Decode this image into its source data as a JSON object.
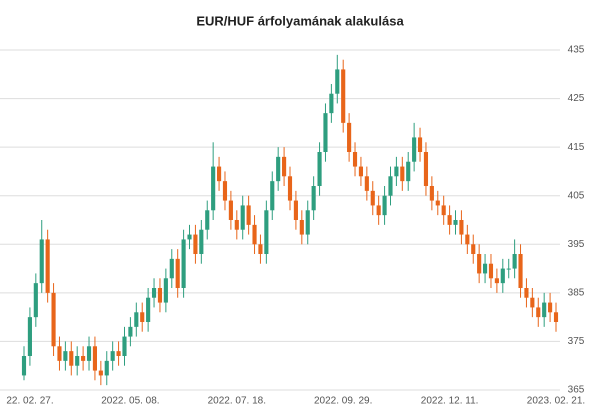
{
  "chart_data": {
    "type": "candlestick",
    "title": "EUR/HUF árfolyamának alakulása",
    "categories": [
      "22. 02. 27.",
      null,
      null,
      null,
      null,
      null,
      null,
      null,
      null,
      null,
      null,
      null,
      null,
      null,
      null,
      null,
      null,
      null,
      "2022. 05. 08.",
      null,
      null,
      null,
      null,
      null,
      null,
      null,
      null,
      null,
      null,
      null,
      null,
      null,
      null,
      null,
      null,
      null,
      "2022. 07. 18.",
      null,
      null,
      null,
      null,
      null,
      null,
      null,
      null,
      null,
      null,
      null,
      null,
      null,
      null,
      null,
      null,
      null,
      "2022. 09. 29.",
      null,
      null,
      null,
      null,
      null,
      null,
      null,
      null,
      null,
      null,
      null,
      null,
      null,
      null,
      null,
      null,
      null,
      "2022. 12. 11.",
      null,
      null,
      null,
      null,
      null,
      null,
      null,
      null,
      null,
      null,
      null,
      null,
      null,
      null,
      null,
      null,
      null,
      "2023. 02. 21."
    ],
    "open": [
      368,
      372,
      380,
      387,
      396,
      385,
      374,
      371,
      373,
      370,
      372,
      371,
      374,
      369,
      368,
      371,
      373,
      372,
      376,
      378,
      381,
      379,
      384,
      386,
      383,
      388,
      392,
      386,
      396,
      397,
      393,
      398,
      402,
      411,
      408,
      404,
      400,
      398,
      403,
      399,
      395,
      393,
      402,
      408,
      413,
      409,
      404,
      400,
      397,
      402,
      407,
      414,
      422,
      426,
      431,
      420,
      414,
      411,
      409,
      406,
      403,
      401,
      405,
      409,
      411,
      408,
      412,
      417,
      414,
      407,
      404,
      403,
      401,
      399,
      400,
      397,
      395,
      393,
      389,
      391,
      388,
      387,
      390,
      390,
      393,
      386,
      384,
      382,
      380,
      383,
      381
    ],
    "high": [
      374,
      382,
      389,
      400,
      398,
      387,
      376,
      375,
      375,
      374,
      374,
      376,
      376,
      371,
      373,
      375,
      375,
      378,
      380,
      383,
      383,
      386,
      388,
      388,
      390,
      394,
      394,
      398,
      399,
      399,
      400,
      404,
      416,
      413,
      410,
      406,
      402,
      405,
      405,
      401,
      397,
      404,
      410,
      415,
      415,
      411,
      406,
      402,
      404,
      409,
      416,
      424,
      428,
      434,
      433,
      422,
      416,
      413,
      411,
      408,
      405,
      407,
      411,
      413,
      413,
      414,
      420,
      419,
      416,
      409,
      406,
      405,
      403,
      402,
      402,
      399,
      397,
      395,
      393,
      393,
      390,
      392,
      392,
      396,
      395,
      388,
      386,
      384,
      385,
      385,
      383
    ],
    "low": [
      367,
      370,
      378,
      385,
      383,
      372,
      369,
      369,
      368,
      368,
      369,
      369,
      367,
      366,
      366,
      369,
      370,
      370,
      374,
      376,
      377,
      377,
      382,
      381,
      381,
      386,
      384,
      384,
      394,
      391,
      391,
      396,
      400,
      406,
      402,
      398,
      396,
      396,
      397,
      393,
      391,
      391,
      400,
      406,
      407,
      402,
      398,
      395,
      395,
      400,
      405,
      412,
      420,
      424,
      418,
      412,
      409,
      407,
      404,
      401,
      399,
      399,
      403,
      407,
      406,
      406,
      410,
      412,
      405,
      402,
      401,
      399,
      397,
      397,
      395,
      393,
      391,
      387,
      387,
      386,
      385,
      385,
      388,
      388,
      384,
      382,
      380,
      378,
      378,
      379,
      377
    ],
    "close": [
      372,
      380,
      387,
      396,
      385,
      374,
      371,
      373,
      370,
      372,
      371,
      374,
      369,
      368,
      371,
      373,
      372,
      376,
      378,
      381,
      379,
      384,
      386,
      383,
      388,
      392,
      386,
      396,
      397,
      393,
      398,
      402,
      411,
      408,
      404,
      400,
      398,
      403,
      399,
      395,
      393,
      402,
      408,
      413,
      409,
      404,
      400,
      397,
      402,
      407,
      414,
      422,
      426,
      431,
      420,
      414,
      411,
      409,
      406,
      403,
      401,
      405,
      409,
      411,
      408,
      412,
      417,
      414,
      407,
      404,
      403,
      401,
      399,
      400,
      397,
      395,
      393,
      389,
      391,
      388,
      387,
      390,
      390,
      393,
      386,
      384,
      382,
      380,
      383,
      381,
      379
    ],
    "up_color": "#2e9e7f",
    "down_color": "#e8651a",
    "ylim": [
      365,
      435
    ],
    "yticks": [
      365,
      375,
      385,
      395,
      405,
      415,
      425,
      435
    ],
    "grid": true
  }
}
